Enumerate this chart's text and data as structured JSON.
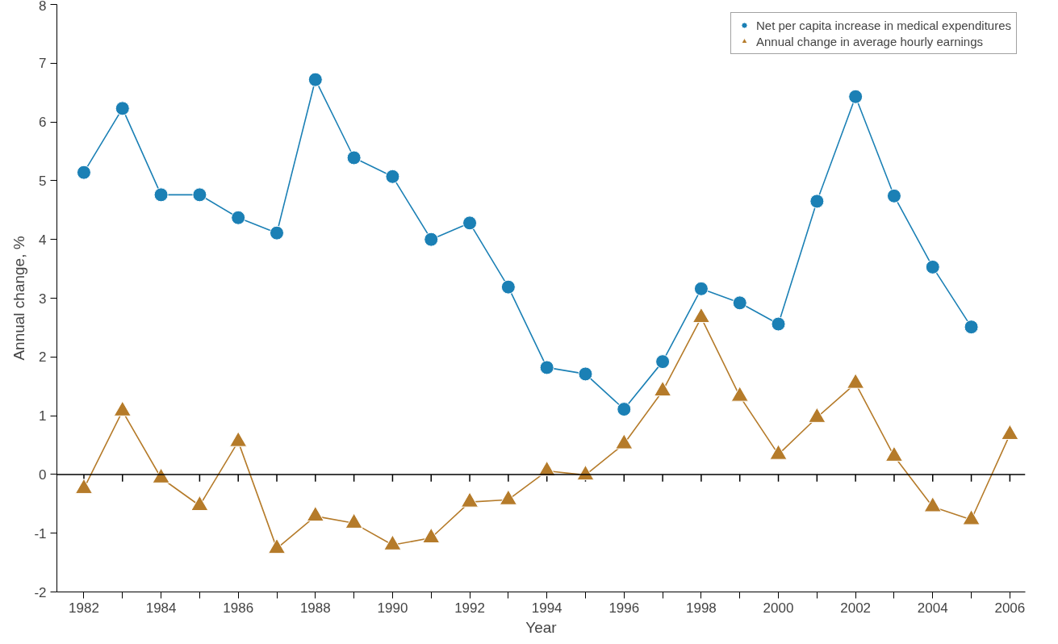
{
  "chart_data": {
    "type": "line",
    "xlabel": "Year",
    "ylabel": "Annual change, %",
    "xlim": [
      1981.3,
      2006.4
    ],
    "ylim": [
      -2,
      8
    ],
    "xticks": [
      1982,
      {
        "value": 1983,
        "label": null
      },
      1984,
      {
        "value": 1985,
        "label": null
      },
      1986,
      {
        "value": 1987,
        "label": null
      },
      1988,
      {
        "value": 1989,
        "label": null
      },
      1990,
      {
        "value": 1991,
        "label": null
      },
      1992,
      {
        "value": 1993,
        "label": null
      },
      1994,
      {
        "value": 1995,
        "label": null
      },
      1996,
      {
        "value": 1997,
        "label": null
      },
      1998,
      {
        "value": 1999,
        "label": null
      },
      2000,
      {
        "value": 2001,
        "label": null
      },
      2002,
      {
        "value": 2003,
        "label": null
      },
      2004,
      {
        "value": 2005,
        "label": null
      },
      2006
    ],
    "yticks": [
      -2,
      -1,
      0,
      1,
      2,
      3,
      4,
      5,
      6,
      7,
      8
    ],
    "grid": false,
    "legend": "top right",
    "line_style": "solid",
    "ref_lines": [
      {
        "axis": "y",
        "value": 0,
        "label": null,
        "color": "#000000"
      }
    ],
    "series": [
      {
        "name": "Net per capita increase in medical expenditures",
        "color": "#1b80b5",
        "marker": "circle",
        "x": [
          1982,
          1983,
          1984,
          1985,
          1986,
          1987,
          1988,
          1989,
          1990,
          1991,
          1992,
          1993,
          1994,
          1995,
          1996,
          1997,
          1998,
          1999,
          2000,
          2001,
          2002,
          2003,
          2004,
          2005
        ],
        "values": [
          5.14,
          6.23,
          4.76,
          4.76,
          4.37,
          4.11,
          6.72,
          5.39,
          5.07,
          4.0,
          4.28,
          3.19,
          1.82,
          1.71,
          1.11,
          1.92,
          3.16,
          2.92,
          2.56,
          4.65,
          6.43,
          4.74,
          3.53,
          2.51
        ]
      },
      {
        "name": "Annual change in average hourly earnings",
        "color": "#b57b2a",
        "marker": "triangle",
        "x": [
          1982,
          1983,
          1984,
          1985,
          1986,
          1987,
          1988,
          1989,
          1990,
          1991,
          1992,
          1993,
          1994,
          1995,
          1996,
          1997,
          1998,
          1999,
          2000,
          2001,
          2002,
          2003,
          2004,
          2005,
          2006
        ],
        "values": [
          -0.24,
          1.08,
          -0.06,
          -0.53,
          0.56,
          -1.26,
          -0.71,
          -0.83,
          -1.2,
          -1.08,
          -0.47,
          -0.43,
          0.06,
          -0.01,
          0.52,
          1.42,
          2.67,
          1.33,
          0.34,
          0.97,
          1.55,
          0.31,
          -0.55,
          -0.77,
          0.68
        ]
      }
    ]
  }
}
